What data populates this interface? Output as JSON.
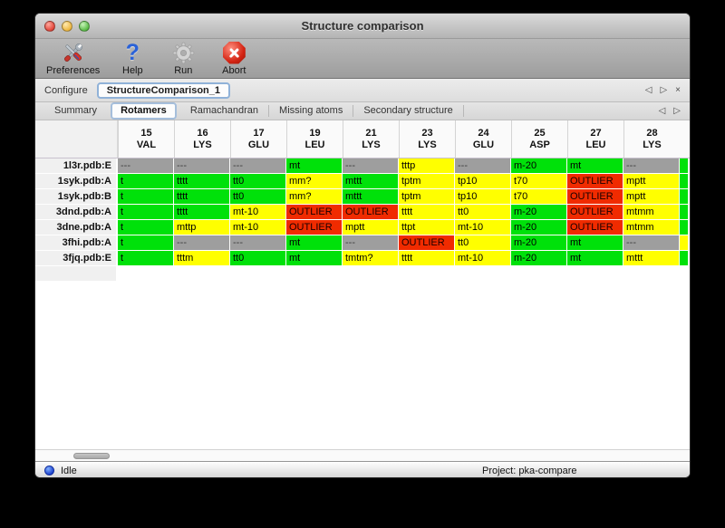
{
  "window": {
    "title": "Structure comparison"
  },
  "icons": {
    "prev": "◁",
    "next": "▷",
    "close": "×",
    "help": "?"
  },
  "toolbar": {
    "items": [
      {
        "label": "Preferences",
        "icon": "preferences-tools-icon"
      },
      {
        "label": "Help",
        "icon": "help-question-icon"
      },
      {
        "label": "Run",
        "icon": "run-gear-icon"
      },
      {
        "label": "Abort",
        "icon": "abort-stop-icon"
      }
    ]
  },
  "configure_bar": {
    "label": "Configure",
    "selected_config": "StructureComparison_1"
  },
  "tab_bar": {
    "tabs": [
      "Summary",
      "Rotamers",
      "Ramachandran",
      "Missing atoms",
      "Secondary structure"
    ],
    "selected": "Rotamers"
  },
  "rotamer_table": {
    "status_colors": {
      "favored": "#00e10a",
      "allowed": "#ffff00",
      "outlier": "#f02b00",
      "missing": "#9e9e9e"
    },
    "columns": [
      {
        "number": "15",
        "residue": "VAL"
      },
      {
        "number": "16",
        "residue": "LYS"
      },
      {
        "number": "17",
        "residue": "GLU"
      },
      {
        "number": "19",
        "residue": "LEU"
      },
      {
        "number": "21",
        "residue": "LYS"
      },
      {
        "number": "23",
        "residue": "LYS"
      },
      {
        "number": "24",
        "residue": "GLU"
      },
      {
        "number": "25",
        "residue": "ASP"
      },
      {
        "number": "27",
        "residue": "LEU"
      },
      {
        "number": "28",
        "residue": "LYS"
      }
    ],
    "rows": [
      {
        "label": "1l3r.pdb:E",
        "overflow_status": "favored",
        "cells": [
          {
            "text": "---",
            "status": "missing"
          },
          {
            "text": "---",
            "status": "missing"
          },
          {
            "text": "---",
            "status": "missing"
          },
          {
            "text": "mt",
            "status": "favored"
          },
          {
            "text": "---",
            "status": "missing"
          },
          {
            "text": "tttp",
            "status": "allowed"
          },
          {
            "text": "---",
            "status": "missing"
          },
          {
            "text": "m-20",
            "status": "favored"
          },
          {
            "text": "mt",
            "status": "favored"
          },
          {
            "text": "---",
            "status": "missing"
          }
        ]
      },
      {
        "label": "1syk.pdb:A",
        "overflow_status": "favored",
        "cells": [
          {
            "text": "t",
            "status": "favored",
            "clipped": true
          },
          {
            "text": "tttt",
            "status": "favored"
          },
          {
            "text": "tt0",
            "status": "favored"
          },
          {
            "text": "mm?",
            "status": "allowed"
          },
          {
            "text": "mttt",
            "status": "favored"
          },
          {
            "text": "tptm",
            "status": "allowed"
          },
          {
            "text": "tp10",
            "status": "allowed"
          },
          {
            "text": "t70",
            "status": "allowed"
          },
          {
            "text": "OUTLIER",
            "status": "outlier"
          },
          {
            "text": "mptt",
            "status": "allowed"
          }
        ]
      },
      {
        "label": "1syk.pdb:B",
        "overflow_status": "favored",
        "cells": [
          {
            "text": "t",
            "status": "favored",
            "clipped": true
          },
          {
            "text": "tttt",
            "status": "favored"
          },
          {
            "text": "tt0",
            "status": "favored"
          },
          {
            "text": "mm?",
            "status": "allowed"
          },
          {
            "text": "mttt",
            "status": "favored"
          },
          {
            "text": "tptm",
            "status": "allowed"
          },
          {
            "text": "tp10",
            "status": "allowed"
          },
          {
            "text": "t70",
            "status": "allowed"
          },
          {
            "text": "OUTLIER",
            "status": "outlier"
          },
          {
            "text": "mptt",
            "status": "allowed"
          }
        ]
      },
      {
        "label": "3dnd.pdb:A",
        "overflow_status": "favored",
        "cells": [
          {
            "text": "t",
            "status": "favored",
            "clipped": true
          },
          {
            "text": "tttt",
            "status": "favored"
          },
          {
            "text": "mt-10",
            "status": "allowed"
          },
          {
            "text": "OUTLIER",
            "status": "outlier"
          },
          {
            "text": "OUTLIER",
            "status": "outlier"
          },
          {
            "text": "tttt",
            "status": "allowed"
          },
          {
            "text": "tt0",
            "status": "allowed"
          },
          {
            "text": "m-20",
            "status": "favored"
          },
          {
            "text": "OUTLIER",
            "status": "outlier"
          },
          {
            "text": "mtmm",
            "status": "allowed"
          }
        ]
      },
      {
        "label": "3dne.pdb:A",
        "overflow_status": "favored",
        "cells": [
          {
            "text": "t",
            "status": "favored",
            "clipped": true
          },
          {
            "text": "mttp",
            "status": "allowed"
          },
          {
            "text": "mt-10",
            "status": "allowed"
          },
          {
            "text": "OUTLIER",
            "status": "outlier"
          },
          {
            "text": "mptt",
            "status": "allowed"
          },
          {
            "text": "ttpt",
            "status": "allowed"
          },
          {
            "text": "mt-10",
            "status": "allowed"
          },
          {
            "text": "m-20",
            "status": "favored"
          },
          {
            "text": "OUTLIER",
            "status": "outlier"
          },
          {
            "text": "mtmm",
            "status": "allowed"
          }
        ]
      },
      {
        "label": "3fhi.pdb:A",
        "overflow_status": "allowed",
        "cells": [
          {
            "text": "t",
            "status": "favored",
            "clipped": true
          },
          {
            "text": "---",
            "status": "missing"
          },
          {
            "text": "---",
            "status": "missing"
          },
          {
            "text": "mt",
            "status": "favored"
          },
          {
            "text": "---",
            "status": "missing"
          },
          {
            "text": "OUTLIER",
            "status": "outlier"
          },
          {
            "text": "tt0",
            "status": "allowed"
          },
          {
            "text": "m-20",
            "status": "favored"
          },
          {
            "text": "mt",
            "status": "favored"
          },
          {
            "text": "---",
            "status": "missing"
          }
        ]
      },
      {
        "label": "3fjq.pdb:E",
        "overflow_status": "favored",
        "cells": [
          {
            "text": "t",
            "status": "favored",
            "clipped": true
          },
          {
            "text": "tttm",
            "status": "allowed"
          },
          {
            "text": "tt0",
            "status": "favored"
          },
          {
            "text": "mt",
            "status": "favored"
          },
          {
            "text": "tmtm?",
            "status": "allowed"
          },
          {
            "text": "tttt",
            "status": "allowed"
          },
          {
            "text": "mt-10",
            "status": "allowed"
          },
          {
            "text": "m-20",
            "status": "favored"
          },
          {
            "text": "mt",
            "status": "favored"
          },
          {
            "text": "mttt",
            "status": "allowed"
          }
        ]
      }
    ]
  },
  "status_bar": {
    "state": "Idle",
    "project": "Project: pka-compare"
  }
}
